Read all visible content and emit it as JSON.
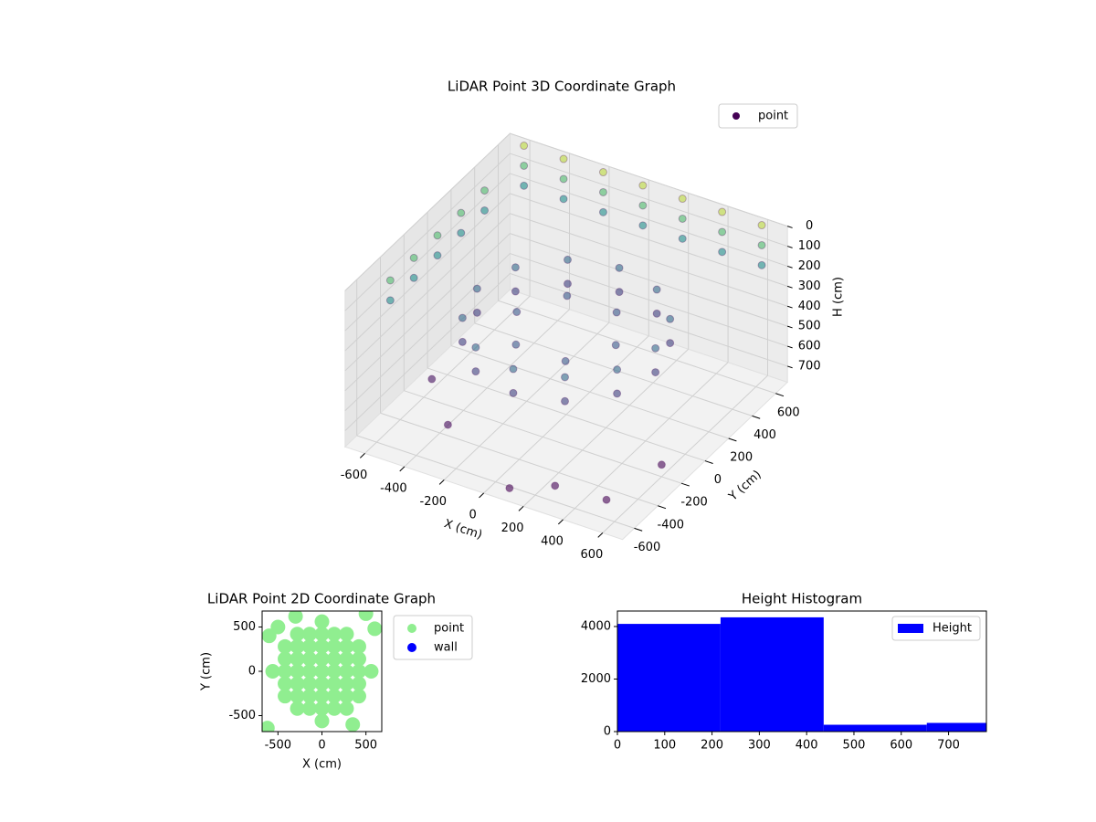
{
  "chart_data": [
    {
      "type": "scatter3d",
      "title": "LiDAR Point 3D Coordinate Graph",
      "xlabel": "X (cm)",
      "ylabel": "Y (cm)",
      "zlabel": "H (cm)",
      "xlim": [
        -700,
        700
      ],
      "ylim": [
        -700,
        700
      ],
      "zlim": [
        780,
        0
      ],
      "xticks": [
        -600,
        -400,
        -200,
        0,
        200,
        400,
        600
      ],
      "yticks": [
        -600,
        -400,
        -200,
        0,
        200,
        400,
        600
      ],
      "zticks": [
        0,
        100,
        200,
        300,
        400,
        500,
        600,
        700
      ],
      "colormap": "viridis",
      "grid": true,
      "legend": "upper right",
      "series": [
        {
          "name": "point",
          "color": "#440154",
          "x": [
            450,
            390,
            225,
            0,
            -225,
            -390,
            -450,
            -390,
            -225,
            0,
            225,
            390,
            450,
            390,
            225,
            0,
            -225,
            -390,
            -450,
            -390,
            -225,
            0,
            225,
            390,
            250,
            125,
            -125,
            -250,
            -125,
            125,
            -600,
            -400,
            -200,
            0,
            200,
            400,
            600,
            -600,
            -400,
            -200,
            0,
            200,
            400,
            600,
            -600,
            -400,
            -200,
            0,
            200,
            400,
            600,
            -650,
            -650,
            -650,
            -650,
            -650,
            -650,
            -650,
            -650,
            -650,
            -650,
            300,
            -300,
            600,
            100,
            -500,
            500
          ],
          "y": [
            0,
            225,
            390,
            450,
            390,
            225,
            0,
            -225,
            -390,
            -450,
            -390,
            -225,
            0,
            225,
            390,
            450,
            390,
            225,
            0,
            -225,
            -390,
            -450,
            -390,
            -225,
            0,
            217,
            217,
            0,
            -217,
            -217,
            650,
            650,
            650,
            650,
            650,
            650,
            650,
            650,
            650,
            650,
            650,
            650,
            650,
            650,
            650,
            650,
            650,
            650,
            650,
            650,
            650,
            -400,
            -200,
            0,
            200,
            400,
            -400,
            -200,
            0,
            200,
            400,
            -600,
            -500,
            -200,
            -650,
            -300,
            -500
          ],
          "z": [
            300,
            300,
            300,
            300,
            300,
            300,
            300,
            300,
            300,
            300,
            300,
            300,
            420,
            420,
            420,
            420,
            420,
            420,
            420,
            420,
            420,
            420,
            420,
            420,
            350,
            350,
            350,
            350,
            350,
            350,
            0,
            0,
            0,
            0,
            0,
            0,
            0,
            100,
            100,
            100,
            100,
            100,
            100,
            100,
            200,
            200,
            200,
            200,
            200,
            200,
            200,
            100,
            100,
            100,
            100,
            100,
            200,
            200,
            200,
            200,
            200,
            700,
            650,
            720,
            750,
            600,
            760
          ]
        }
      ]
    },
    {
      "type": "scatter",
      "title": "LiDAR Point 2D Coordinate Graph",
      "xlabel": "X (cm)",
      "ylabel": "Y (cm)",
      "xlim": [
        -680,
        680
      ],
      "ylim": [
        -680,
        680
      ],
      "xticks": [
        -500,
        0,
        500
      ],
      "yticks": [
        -500,
        0,
        500
      ],
      "legend": "outside right",
      "series": [
        {
          "name": "point",
          "color": "#90ee90",
          "x": [
            -560,
            -420,
            -420,
            -420,
            -420,
            -420,
            -280,
            -280,
            -280,
            -280,
            -280,
            -280,
            -280,
            -140,
            -140,
            -140,
            -140,
            -140,
            -140,
            -140,
            0,
            0,
            0,
            0,
            0,
            0,
            0,
            0,
            0,
            140,
            140,
            140,
            140,
            140,
            140,
            140,
            280,
            280,
            280,
            280,
            280,
            280,
            280,
            420,
            420,
            420,
            420,
            420,
            560,
            -600,
            -500,
            500,
            600,
            -620,
            -300,
            350
          ],
          "y": [
            0,
            -280,
            -140,
            0,
            140,
            280,
            -420,
            -280,
            -140,
            0,
            140,
            280,
            420,
            -420,
            -280,
            -140,
            0,
            140,
            280,
            420,
            -560,
            -420,
            -280,
            -140,
            0,
            140,
            280,
            420,
            560,
            -420,
            -280,
            -140,
            0,
            140,
            280,
            420,
            -420,
            -280,
            -140,
            0,
            140,
            280,
            420,
            -280,
            -140,
            0,
            140,
            280,
            0,
            400,
            500,
            650,
            480,
            -640,
            620,
            -600
          ]
        },
        {
          "name": "wall",
          "color": "#0000ff",
          "x": [],
          "y": []
        }
      ]
    },
    {
      "type": "histogram",
      "title": "Height Histogram",
      "bins": [
        0,
        218,
        436,
        654,
        780
      ],
      "values": [
        4100,
        4350,
        260,
        330
      ],
      "series_name": "Height",
      "color": "#0000ff",
      "xlim": [
        0,
        780
      ],
      "ylim": [
        0,
        4590
      ],
      "xticks": [
        0,
        100,
        200,
        300,
        400,
        500,
        600,
        700
      ],
      "yticks": [
        0,
        2000,
        4000
      ],
      "legend": "upper right"
    }
  ]
}
